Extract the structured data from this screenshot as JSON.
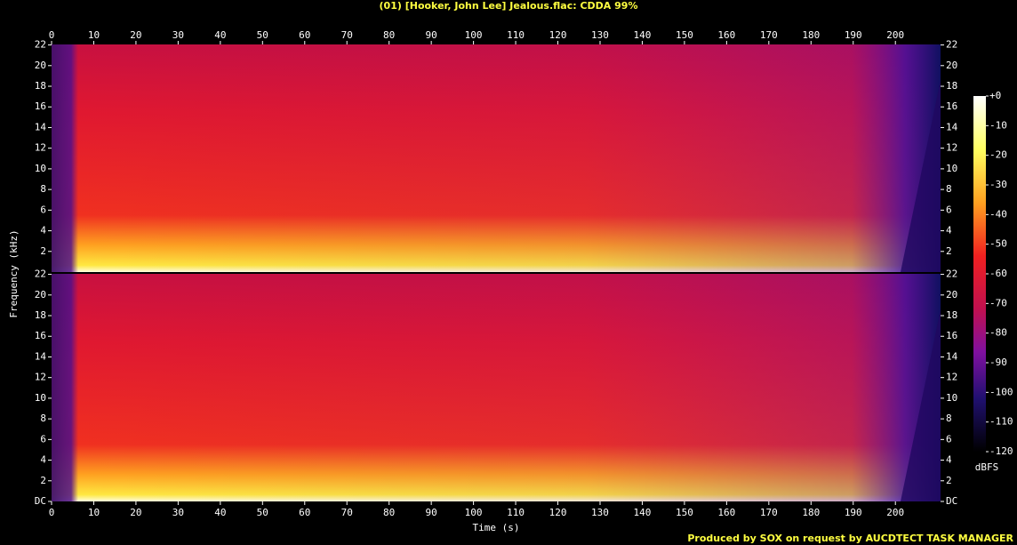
{
  "chart_data": {
    "type": "spectrogram",
    "title": "(01) [Hooker, John Lee] Jealous.flac: CDDA 99%",
    "xlabel": "Time (s)",
    "ylabel": "Frequency (kHz)",
    "xlim": [
      0,
      210.7
    ],
    "xticks": [
      0,
      10,
      20,
      30,
      40,
      50,
      60,
      70,
      80,
      90,
      100,
      110,
      120,
      130,
      140,
      150,
      160,
      170,
      180,
      190,
      200
    ],
    "ylim": [
      0,
      22.05
    ],
    "yticks": [
      {
        "value": 0,
        "label": "DC"
      },
      2,
      4,
      6,
      8,
      10,
      12,
      14,
      16,
      18,
      20,
      22
    ],
    "colorbar": {
      "label": "dBFS",
      "lim": [
        -120,
        0
      ],
      "ticks": [
        {
          "value": 0,
          "label": "+0"
        },
        -10,
        -20,
        -30,
        -40,
        -50,
        -60,
        -70,
        -80,
        -90,
        -100,
        -110,
        -120
      ]
    },
    "footer": "Produced by SOX on request by AUCDTECT TASK MANAGER"
  }
}
